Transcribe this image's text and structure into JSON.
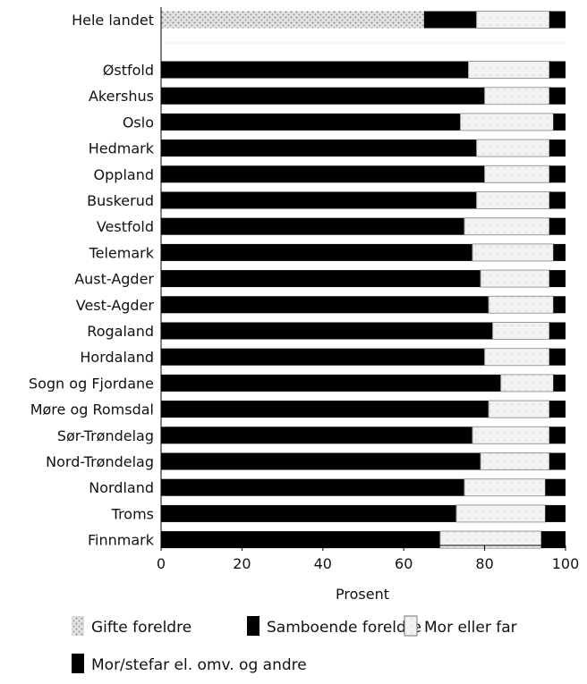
{
  "chart_data": {
    "type": "bar",
    "orientation": "horizontal",
    "stacked": true,
    "categories": [
      "Hele landet",
      "Østfold",
      "Akershus",
      "Oslo",
      "Hedmark",
      "Oppland",
      "Buskerud",
      "Vestfold",
      "Telemark",
      "Aust-Agder",
      "Vest-Agder",
      "Rogaland",
      "Hordaland",
      "Sogn og Fjordane",
      "Møre og Romsdal",
      "Sør-Trøndelag",
      "Nord-Trøndelag",
      "Nordland",
      "Troms",
      "Finnmark"
    ],
    "series": [
      {
        "name": "Gifte foreldre",
        "color": "#c8c8c8",
        "values": [
          65,
          0,
          0,
          0,
          0,
          0,
          0,
          0,
          0,
          0,
          0,
          0,
          0,
          0,
          0,
          0,
          0,
          0,
          0,
          0
        ]
      },
      {
        "name": "Samboende foreldre",
        "color": "#000000",
        "values": [
          13,
          76,
          80,
          74,
          78,
          80,
          78,
          75,
          77,
          79,
          81,
          82,
          80,
          84,
          81,
          77,
          79,
          75,
          73,
          69
        ]
      },
      {
        "name": "Mor eller far",
        "color": "#e6e6e6",
        "values": [
          18,
          20,
          16,
          23,
          18,
          16,
          18,
          21,
          20,
          17,
          16,
          14,
          16,
          13,
          15,
          19,
          17,
          20,
          22,
          25
        ]
      },
      {
        "name": "Mor/stefar el. omv. og andre",
        "color": "#000000",
        "values": [
          4,
          4,
          4,
          3,
          4,
          4,
          4,
          4,
          3,
          4,
          3,
          4,
          4,
          3,
          4,
          4,
          4,
          5,
          5,
          6
        ]
      }
    ],
    "xlim": [
      0,
      100
    ],
    "xticks": [
      "0",
      "20",
      "40",
      "60",
      "80",
      "100"
    ],
    "xlabel": "Prosent",
    "ylabel": "",
    "title": "",
    "legend_position": "bottom",
    "grid": false
  }
}
